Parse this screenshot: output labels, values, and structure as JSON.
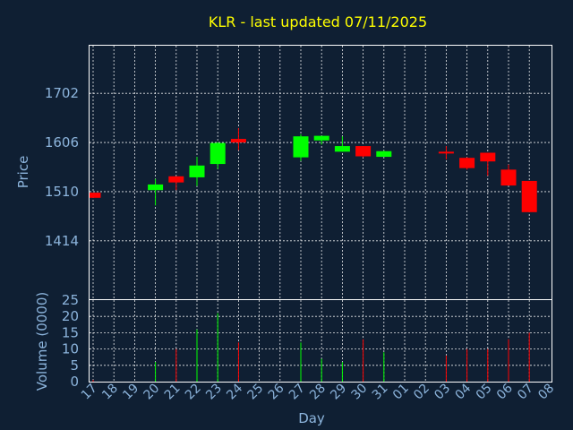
{
  "chart_data": {
    "type": "candlestick",
    "title": "KLR - last updated 07/11/2025",
    "xlabel": "Day",
    "price_panel": {
      "ylabel": "Price",
      "yticks": [
        1414,
        1510,
        1606,
        1702
      ],
      "ylim": [
        1300,
        1795
      ]
    },
    "volume_panel": {
      "ylabel": "Volume (0000)",
      "yticks": [
        0,
        5,
        10,
        15,
        20,
        25
      ],
      "ylim": [
        0,
        25
      ]
    },
    "x_tick_labels": [
      "17",
      "18",
      "19",
      "20",
      "21",
      "22",
      "23",
      "24",
      "25",
      "26",
      "27",
      "28",
      "29",
      "30",
      "31",
      "01",
      "02",
      "03",
      "04",
      "05",
      "06",
      "07",
      "08"
    ],
    "bullish_color": "#00ff00",
    "bearish_color": "#ff0000",
    "candles": [
      {
        "x": 0,
        "open": 1508,
        "close": 1498,
        "high": 1508,
        "low": 1498,
        "volume": 0.5
      },
      {
        "x": 3,
        "open": 1513,
        "close": 1524,
        "high": 1535,
        "low": 1483,
        "volume": 6
      },
      {
        "x": 4,
        "open": 1540,
        "close": 1528,
        "high": 1540,
        "low": 1513,
        "volume": 10
      },
      {
        "x": 5,
        "open": 1538,
        "close": 1561,
        "high": 1578,
        "low": 1521,
        "volume": 16
      },
      {
        "x": 6,
        "open": 1564,
        "close": 1605,
        "high": 1607,
        "low": 1554,
        "volume": 21
      },
      {
        "x": 7,
        "open": 1613,
        "close": 1606,
        "high": 1634,
        "low": 1591,
        "volume": 12
      },
      {
        "x": 10,
        "open": 1577,
        "close": 1618,
        "high": 1622,
        "low": 1570,
        "volume": 12
      },
      {
        "x": 11,
        "open": 1610,
        "close": 1619,
        "high": 1619,
        "low": 1602,
        "volume": 7
      },
      {
        "x": 12,
        "open": 1588,
        "close": 1599,
        "high": 1618,
        "low": 1588,
        "volume": 6
      },
      {
        "x": 13,
        "open": 1599,
        "close": 1579,
        "high": 1599,
        "low": 1577,
        "volume": 13
      },
      {
        "x": 14,
        "open": 1578,
        "close": 1589,
        "high": 1590,
        "low": 1578,
        "volume": 9
      },
      {
        "x": 17,
        "open": 1588,
        "close": 1587,
        "high": 1599,
        "low": 1573,
        "volume": 8
      },
      {
        "x": 18,
        "open": 1576,
        "close": 1556,
        "high": 1577,
        "low": 1553,
        "volume": 10
      },
      {
        "x": 19,
        "open": 1586,
        "close": 1569,
        "high": 1586,
        "low": 1541,
        "volume": 10
      },
      {
        "x": 20,
        "open": 1553,
        "close": 1522,
        "high": 1563,
        "low": 1522,
        "volume": 13
      },
      {
        "x": 21,
        "open": 1531,
        "close": 1470,
        "high": 1531,
        "low": 1470,
        "volume": 15
      }
    ]
  }
}
